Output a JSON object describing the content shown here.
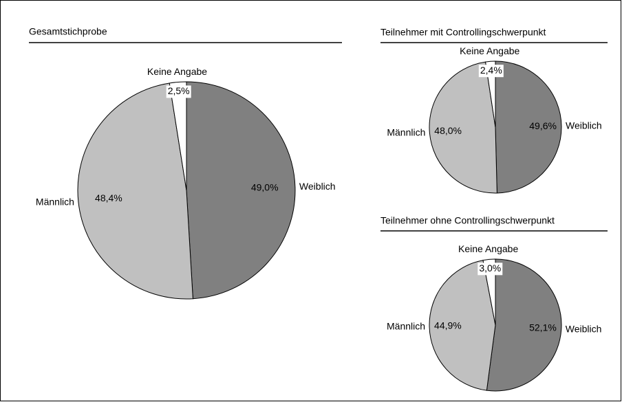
{
  "chart_data": [
    {
      "type": "pie",
      "title": "Gesamtstichprobe",
      "categories": [
        "Weiblich",
        "Männlich",
        "Keine Angabe"
      ],
      "values": [
        49.0,
        48.4,
        2.5
      ],
      "value_labels": [
        "49,0%",
        "48,4%",
        "2,5%"
      ],
      "colors": [
        "#808080",
        "#c0c0c0",
        "#ffffff"
      ]
    },
    {
      "type": "pie",
      "title": "Teilnehmer mit Controllingschwerpunkt",
      "categories": [
        "Weiblich",
        "Männlich",
        "Keine Angabe"
      ],
      "values": [
        49.6,
        48.0,
        2.4
      ],
      "value_labels": [
        "49,6%",
        "48,0%",
        "2,4%"
      ],
      "colors": [
        "#808080",
        "#c0c0c0",
        "#ffffff"
      ]
    },
    {
      "type": "pie",
      "title": "Teilnehmer ohne Controllingschwerpunkt",
      "categories": [
        "Weiblich",
        "Männlich",
        "Keine Angabe"
      ],
      "values": [
        52.1,
        44.9,
        3.0
      ],
      "value_labels": [
        "52,1%",
        "44,9%",
        "3,0%"
      ],
      "colors": [
        "#808080",
        "#c0c0c0",
        "#ffffff"
      ]
    }
  ]
}
